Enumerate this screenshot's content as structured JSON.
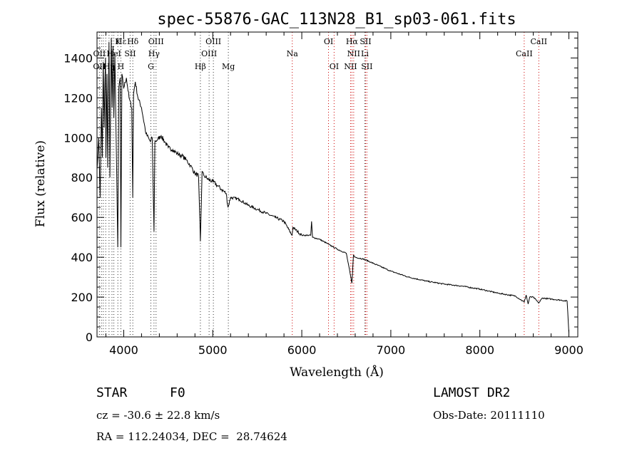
{
  "chart_data": {
    "type": "line",
    "title": "spec-55876-GAC_113N28_B1_sp03-061.fits",
    "xlabel": "Wavelength (Å)",
    "ylabel": "Flux (relative)",
    "xlim": [
      3700,
      9100
    ],
    "ylim": [
      0,
      1530
    ],
    "x_ticks": [
      4000,
      5000,
      6000,
      7000,
      8000,
      9000
    ],
    "y_ticks": [
      0,
      200,
      400,
      600,
      800,
      1000,
      1200,
      1400
    ],
    "grid": false,
    "series": [
      {
        "x": [
          3700,
          3720,
          3735,
          3750,
          3760,
          3770,
          3780,
          3795,
          3800,
          3812,
          3820,
          3835,
          3845,
          3860,
          3870,
          3880,
          3889,
          3900,
          3915,
          3933,
          3945,
          3960,
          3968,
          3980,
          4000,
          4030,
          4060,
          4090,
          4101,
          4110,
          4130,
          4160,
          4200,
          4250,
          4300,
          4320,
          4340,
          4350,
          4380,
          4420,
          4460,
          4500,
          4550,
          4600,
          4650,
          4700,
          4750,
          4800,
          4840,
          4861,
          4880,
          4900,
          4950,
          5000,
          5050,
          5100,
          5150,
          5172,
          5200,
          5300,
          5400,
          5500,
          5600,
          5700,
          5800,
          5890,
          5900,
          6000,
          6100,
          6110,
          6120,
          6200,
          6300,
          6400,
          6500,
          6563,
          6580,
          6600,
          6700,
          6800,
          7000,
          7200,
          7400,
          7600,
          7700,
          7800,
          8000,
          8200,
          8400,
          8498,
          8520,
          8542,
          8560,
          8600,
          8662,
          8700,
          8800,
          8900,
          8980,
          9000
        ],
        "y": [
          840,
          1000,
          700,
          1150,
          900,
          1380,
          1050,
          1400,
          900,
          1320,
          850,
          1480,
          800,
          1500,
          1150,
          1460,
          1100,
          1420,
          1000,
          450,
          1250,
          1300,
          450,
          1320,
          1250,
          1300,
          1200,
          1150,
          700,
          1220,
          1280,
          1200,
          1150,
          1020,
          980,
          1000,
          530,
          980,
          990,
          1010,
          980,
          950,
          940,
          920,
          910,
          890,
          860,
          820,
          810,
          480,
          830,
          810,
          790,
          780,
          760,
          740,
          720,
          650,
          700,
          690,
          660,
          640,
          620,
          600,
          580,
          510,
          550,
          510,
          510,
          580,
          500,
          490,
          465,
          440,
          420,
          270,
          410,
          400,
          390,
          370,
          330,
          300,
          280,
          265,
          260,
          255,
          240,
          220,
          205,
          175,
          210,
          165,
          200,
          200,
          170,
          195,
          190,
          185,
          180,
          20
        ]
      }
    ],
    "line_labels": [
      {
        "text": "Hε",
        "x": 3970,
        "row": 1
      },
      {
        "text": "K",
        "x": 3934,
        "row": 1
      },
      {
        "text": "Hδ",
        "x": 4102,
        "row": 1
      },
      {
        "text": "OIII",
        "x": 4363,
        "row": 1
      },
      {
        "text": "OIII",
        "x": 5007,
        "row": 1
      },
      {
        "text": "OI",
        "x": 6300,
        "row": 1
      },
      {
        "text": "Hα",
        "x": 6563,
        "row": 1
      },
      {
        "text": "SII",
        "x": 6716,
        "row": 1
      },
      {
        "text": "CaII",
        "x": 8662,
        "row": 1
      },
      {
        "text": "OII",
        "x": 3727,
        "row": 2
      },
      {
        "text": "HeI",
        "x": 3889,
        "row": 2
      },
      {
        "text": "SII",
        "x": 4072,
        "row": 2
      },
      {
        "text": "Hγ",
        "x": 4340,
        "row": 2
      },
      {
        "text": "OIII",
        "x": 4959,
        "row": 2
      },
      {
        "text": "Na",
        "x": 5893,
        "row": 2
      },
      {
        "text": "NII",
        "x": 6583,
        "row": 2
      },
      {
        "text": "Li",
        "x": 6708,
        "row": 2
      },
      {
        "text": "CaII",
        "x": 8498,
        "row": 2
      },
      {
        "text": "OII",
        "x": 3726,
        "row": 3
      },
      {
        "text": "Hη",
        "x": 3835,
        "row": 3
      },
      {
        "text": "H",
        "x": 3968,
        "row": 3
      },
      {
        "text": "G",
        "x": 4305,
        "row": 3
      },
      {
        "text": "Hβ",
        "x": 4861,
        "row": 3
      },
      {
        "text": "Mg",
        "x": 5175,
        "row": 3
      },
      {
        "text": "OI",
        "x": 6363,
        "row": 3
      },
      {
        "text": "NII",
        "x": 6548,
        "row": 3
      },
      {
        "text": "SII",
        "x": 6731,
        "row": 3
      }
    ],
    "line_marker_wavelengths": [
      3727,
      3750,
      3771,
      3798,
      3835,
      3868,
      3889,
      3934,
      3968,
      4072,
      4102,
      4305,
      4340,
      4363,
      4861,
      4959,
      5007,
      5175,
      5893,
      6300,
      6363,
      6548,
      6563,
      6583,
      6708,
      6716,
      6731,
      8498,
      8662
    ],
    "colors": {
      "spectrum": "#000000",
      "markers": "#cc0000",
      "minor_markers": "#333333"
    }
  },
  "info": {
    "class": "STAR",
    "subclass": "F0",
    "survey": "LAMOST DR2",
    "cz": "cz = -30.6 ± 22.8 km/s",
    "obs_date": "Obs-Date: 20111110",
    "coords": "RA = 112.24034, DEC =  28.74624"
  }
}
